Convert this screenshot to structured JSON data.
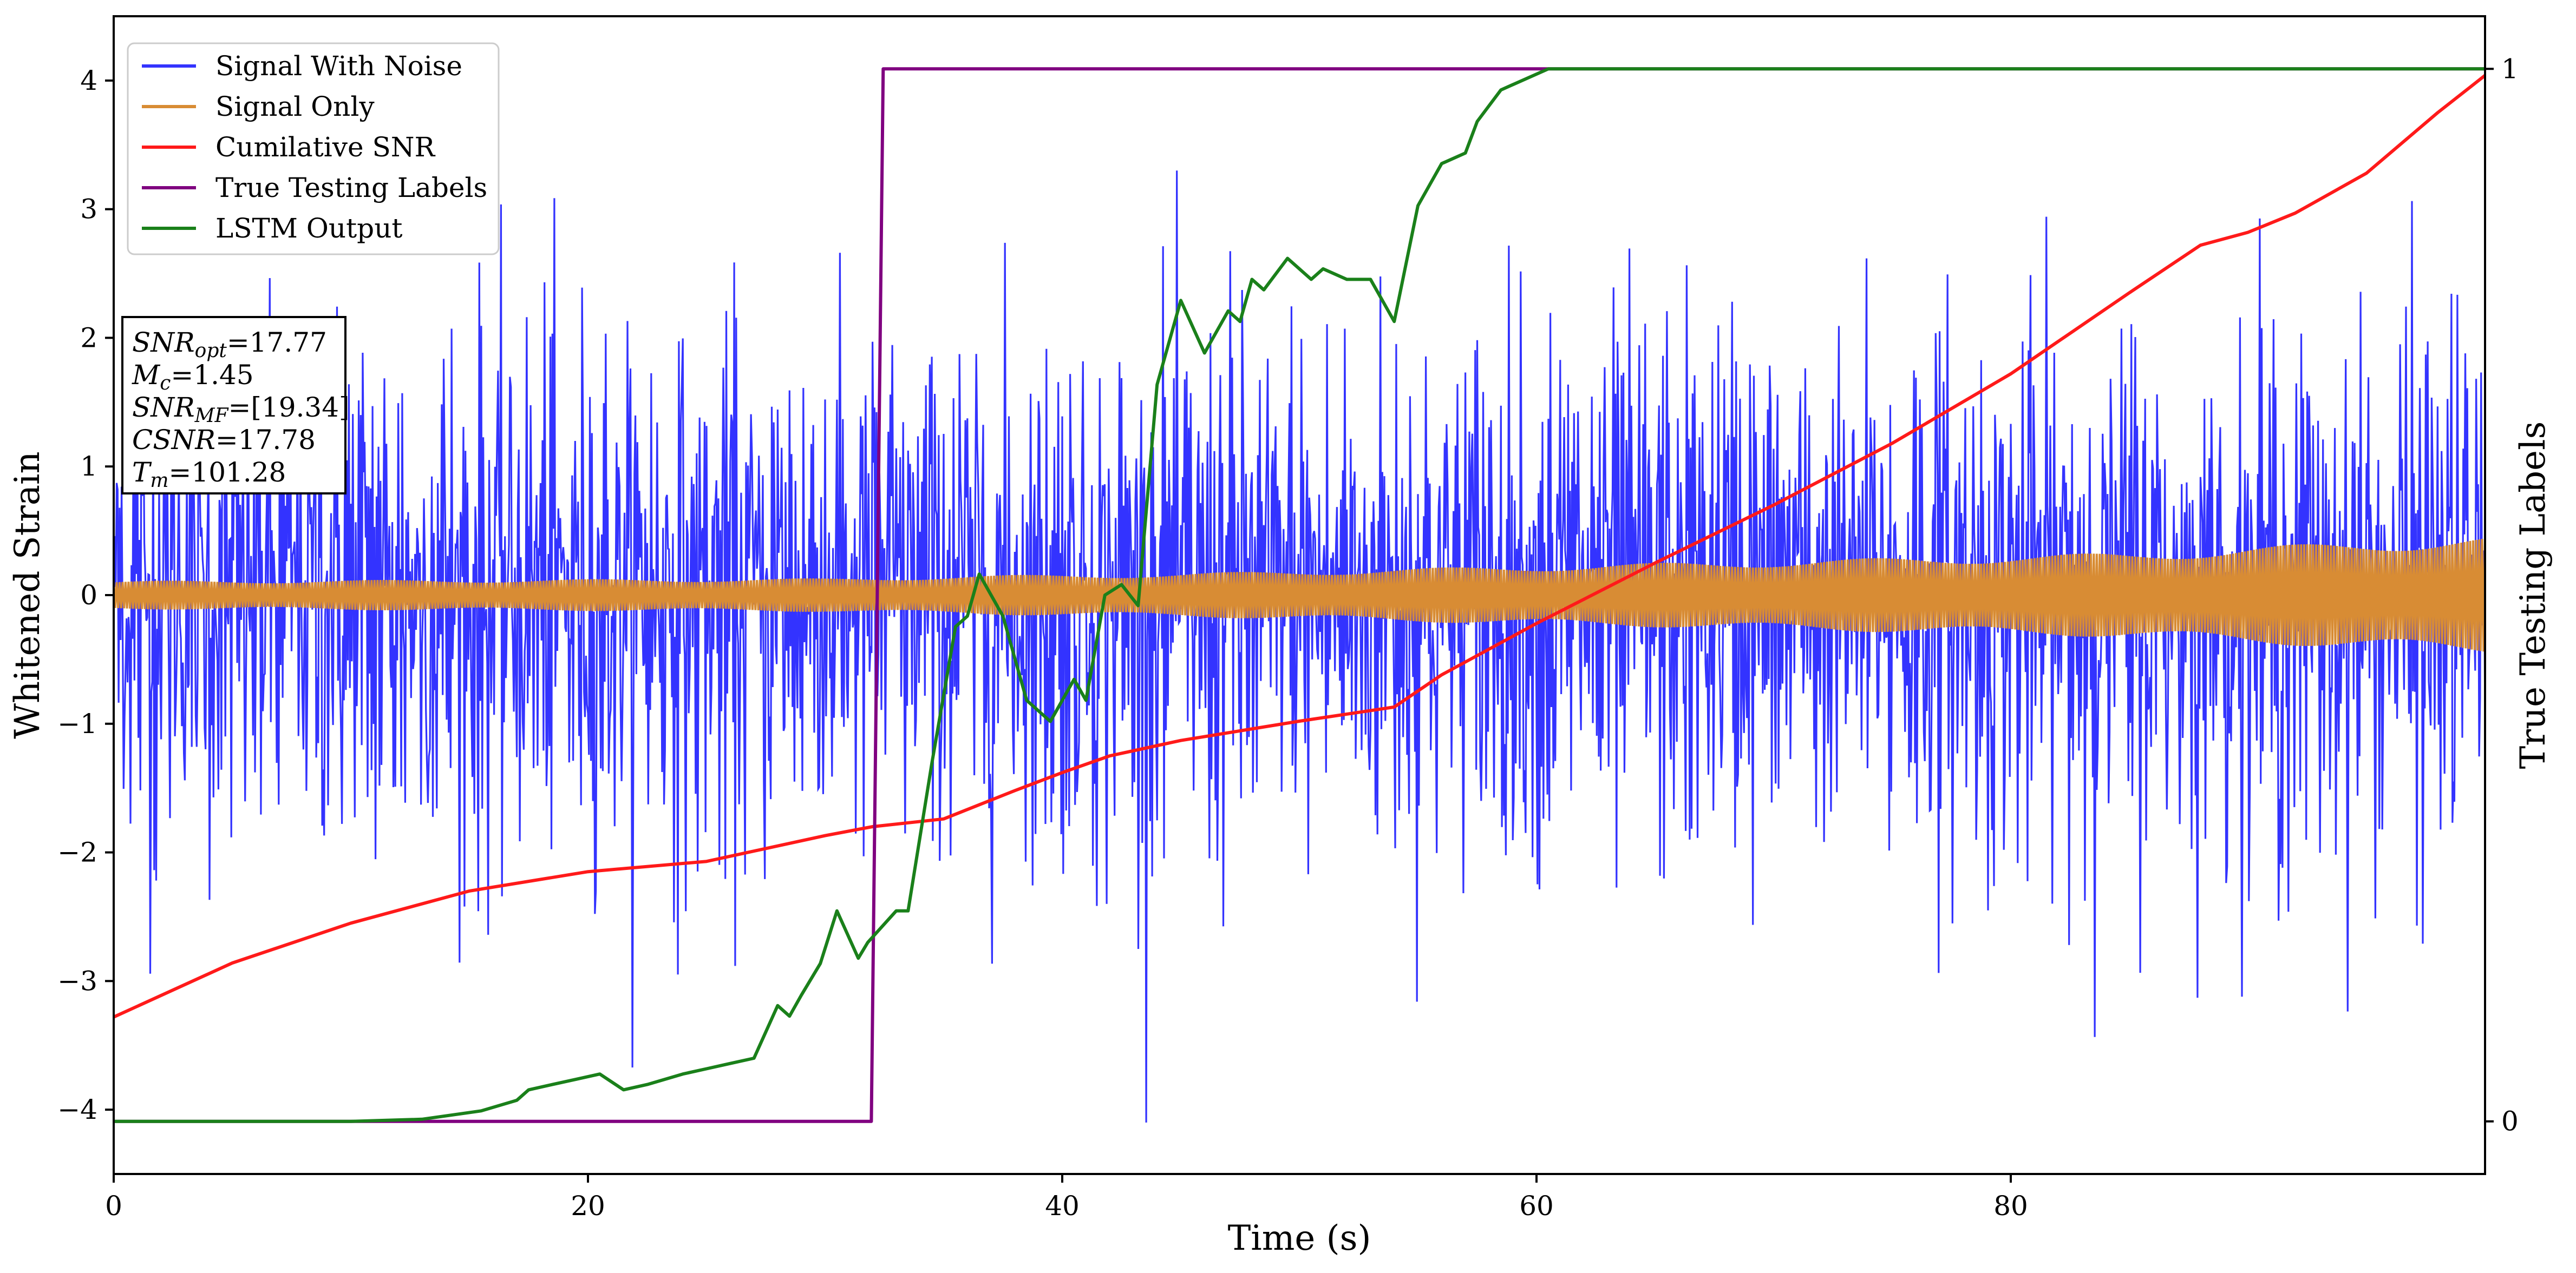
{
  "chart_data": {
    "type": "line",
    "xlabel": "Time (s)",
    "ylabel": "Whitened Strain",
    "y2label": "True Testing Labels",
    "xlim": [
      0,
      100
    ],
    "ylim": [
      -4.5,
      4.5
    ],
    "y2lim": [
      -0.05,
      1.05
    ],
    "xticks": [
      "0",
      "20",
      "40",
      "60",
      "80"
    ],
    "yticks": [
      "−4",
      "−3",
      "−2",
      "−1",
      "0",
      "1",
      "2",
      "3",
      "4"
    ],
    "y2ticks": [
      "0",
      "1"
    ],
    "grid": false,
    "legend_position": "top-left",
    "stats": [
      "SNR_opt=17.77",
      "M_c=1.45",
      "SNR_MF=[19.34]",
      "CSNR=17.78",
      "T_m=101.28"
    ],
    "series": [
      {
        "name": "Signal With Noise",
        "color": "#3333ff",
        "axis": "left",
        "description_range": [
          -4.1,
          3.3
        ],
        "typical_band": [
          -2.5,
          2.8
        ]
      },
      {
        "name": "Signal Only",
        "color": "#d88c34",
        "axis": "left",
        "envelope": {
          "x": [
            0,
            30,
            35,
            45,
            55,
            65,
            75,
            85,
            95,
            100
          ],
          "amplitude": [
            0.11,
            0.13,
            0.15,
            0.17,
            0.21,
            0.25,
            0.29,
            0.33,
            0.42,
            0.45
          ]
        }
      },
      {
        "name": "Cumilative SNR",
        "color": "#ff1a1a",
        "axis": "left",
        "x": [
          0,
          5,
          10,
          15,
          20,
          25,
          30,
          32,
          35,
          38,
          40,
          42,
          45,
          50,
          54,
          56,
          60,
          65,
          70,
          75,
          80,
          85,
          88,
          90,
          92,
          95,
          98,
          100
        ],
        "y": [
          -3.28,
          -2.86,
          -2.55,
          -2.3,
          -2.15,
          -2.07,
          -1.87,
          -1.8,
          -1.74,
          -1.52,
          -1.38,
          -1.25,
          -1.13,
          -0.98,
          -0.87,
          -0.62,
          -0.22,
          0.25,
          0.7,
          1.18,
          1.72,
          2.35,
          2.72,
          2.82,
          2.97,
          3.28,
          3.75,
          4.04
        ]
      },
      {
        "name": "True Testing Labels",
        "color": "#800080",
        "axis": "right",
        "x": [
          0,
          31.95,
          32.45,
          100
        ],
        "y": [
          0,
          0,
          1,
          1
        ]
      },
      {
        "name": "LSTM Output",
        "color": "#1a801a",
        "axis": "right",
        "x": [
          0,
          10,
          13,
          15.5,
          17,
          17.5,
          18.5,
          19.5,
          20.5,
          21.5,
          22.5,
          24,
          25,
          26,
          27,
          28,
          28.5,
          29,
          29.8,
          30.5,
          31.4,
          31.8,
          32.4,
          33,
          33.5,
          34.5,
          35.5,
          36,
          36.5,
          37.5,
          38.5,
          39.5,
          40.5,
          41,
          41.8,
          42.5,
          43.2,
          44,
          45,
          46,
          47,
          47.5,
          48,
          48.5,
          49.5,
          50.5,
          51,
          52,
          53,
          54,
          55,
          56,
          57,
          57.5,
          58.5,
          59.5,
          60.5,
          62,
          63,
          65,
          70,
          100
        ],
        "y": [
          0,
          0,
          0.002,
          0.01,
          0.02,
          0.03,
          0.035,
          0.04,
          0.045,
          0.03,
          0.035,
          0.045,
          0.05,
          0.055,
          0.06,
          0.11,
          0.1,
          0.12,
          0.15,
          0.2,
          0.155,
          0.17,
          0.185,
          0.2,
          0.2,
          0.34,
          0.47,
          0.48,
          0.52,
          0.48,
          0.4,
          0.38,
          0.42,
          0.4,
          0.5,
          0.51,
          0.49,
          0.7,
          0.78,
          0.73,
          0.77,
          0.76,
          0.8,
          0.79,
          0.82,
          0.8,
          0.81,
          0.8,
          0.8,
          0.76,
          0.87,
          0.91,
          0.92,
          0.95,
          0.98,
          0.99,
          1,
          1,
          1,
          1,
          1,
          1
        ]
      }
    ]
  }
}
